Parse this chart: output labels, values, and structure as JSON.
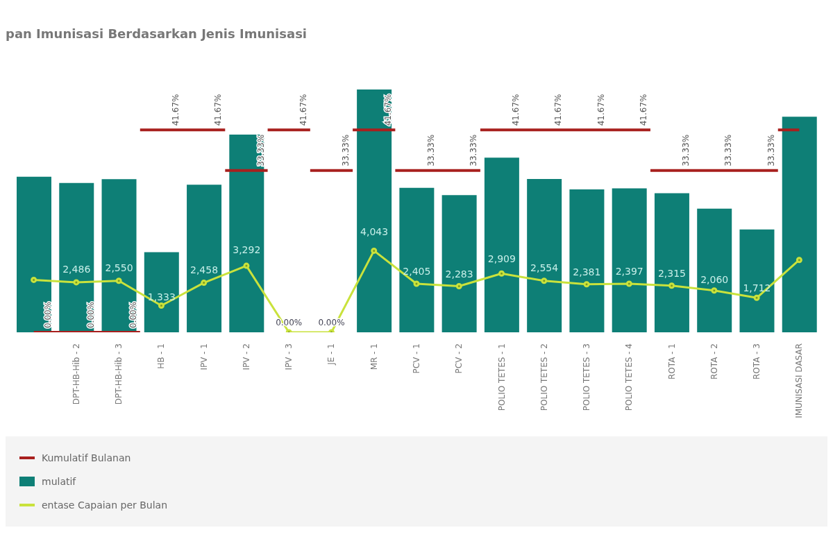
{
  "chart_data": {
    "type": "bar",
    "title": "pan Imunisasi Berdasarkan Jenis Imunisasi",
    "categories": [
      null,
      "DPT-HB-Hib - 2",
      "DPT-HB-Hib - 3",
      "HB - 1",
      "IPV - 1",
      "IPV - 2",
      "IPV - 3",
      "JE - 1",
      "MR - 1",
      "PCV - 1",
      "PCV - 2",
      "POLIO TETES - 1",
      "POLIO TETES - 2",
      "POLIO TETES - 3",
      "POLIO TETES - 4",
      "ROTA - 1",
      "ROTA - 2",
      "ROTA - 3",
      "IMUNISASI DASAR"
    ],
    "series": [
      {
        "name": "Kumulatif Bulanan",
        "type": "step",
        "axis": "y2",
        "color": "#a8201e",
        "values": [
          0,
          0,
          0,
          41.67,
          41.67,
          33.33,
          41.67,
          33.33,
          41.67,
          33.33,
          33.33,
          41.67,
          41.67,
          41.67,
          41.67,
          33.33,
          33.33,
          33.33,
          41.67
        ],
        "value_labels": [
          "0.00%",
          "0.00%",
          "0.00%",
          "41.67%",
          "41.67%",
          "33.33%",
          "41.67%",
          "33.33%",
          "41.67%",
          "33.33%",
          "33.33%",
          "41.67%",
          "41.67%",
          "41.67%",
          "41.67%",
          "33.33%",
          "33.33%",
          "33.33%",
          null
        ]
      },
      {
        "name": "mulatif",
        "axis": "y",
        "color": "#0e7f76",
        "values": [
          2590,
          2486,
          2550,
          1333,
          2458,
          3292,
          0,
          0,
          4043,
          2405,
          2283,
          2909,
          2554,
          2381,
          2397,
          2315,
          2060,
          1712,
          3590
        ],
        "value_labels": [
          null,
          "2,486",
          "2,550",
          "1,333",
          "2,458",
          "3,292",
          null,
          null,
          "4,043",
          "2,405",
          "2,283",
          "2,909",
          "2,554",
          "2,381",
          "2,397",
          "2,315",
          "2,060",
          "1,712",
          null
        ]
      },
      {
        "name": "entase Capaian per Bulan",
        "type": "line",
        "axis": "y2",
        "color": "#c9e23c",
        "marker": "circle",
        "values": [
          10.8,
          10.3,
          10.6,
          5.5,
          10.2,
          13.7,
          0,
          0,
          16.8,
          10.0,
          9.5,
          12.1,
          10.6,
          9.9,
          10.0,
          9.6,
          8.6,
          7.1,
          14.9
        ],
        "value_labels": [
          null,
          null,
          null,
          null,
          null,
          null,
          "0.00%",
          "0.00%",
          null,
          null,
          null,
          null,
          null,
          null,
          null,
          null,
          null,
          null,
          null
        ]
      }
    ],
    "ylim": [
      0,
      4043
    ],
    "y2lim": [
      0,
      50
    ],
    "tick_labels": "x",
    "legend": "bottom"
  }
}
